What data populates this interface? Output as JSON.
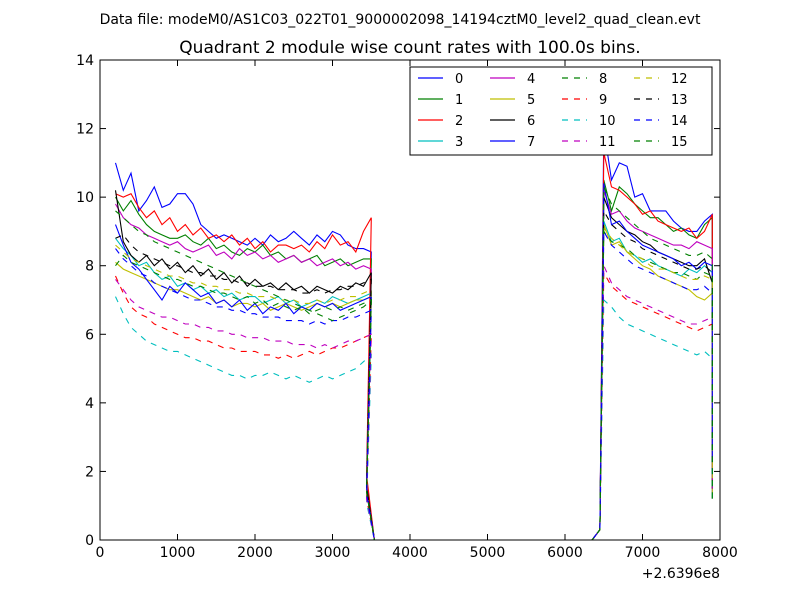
{
  "suptitle": "Data file: modeM0/AS1C03_022T01_9000002098_14194cztM0_level2_quad_clean.evt",
  "chart_data": {
    "type": "line",
    "title": "Quadrant 2 module wise count rates with 100.0s bins.",
    "xlabel": "",
    "ylabel": "",
    "xlim": [
      0,
      8000
    ],
    "ylim": [
      0,
      14
    ],
    "x_offset_label": "+2.6396e8",
    "xticks": [
      0,
      1000,
      2000,
      3000,
      4000,
      5000,
      6000,
      7000,
      8000
    ],
    "yticks": [
      0,
      2,
      4,
      6,
      8,
      10,
      12,
      14
    ],
    "xtick_labels": [
      "0",
      "1000",
      "2000",
      "3000",
      "4000",
      "5000",
      "6000",
      "7000",
      "8000"
    ],
    "ytick_labels": [
      "0",
      "2",
      "4",
      "6",
      "8",
      "10",
      "12",
      "14"
    ],
    "legend_position": "top-right",
    "series": [
      {
        "name": "0",
        "color": "#0000ff",
        "dash": "solid",
        "seg1": [
          11.0,
          10.2,
          10.7,
          9.6,
          9.9,
          10.3,
          9.7,
          9.8,
          10.1,
          10.1,
          9.8,
          9.2,
          9.0,
          8.8,
          8.9,
          8.8,
          8.7,
          8.6,
          8.8,
          8.6,
          8.9,
          8.7,
          8.8,
          9.0,
          8.8,
          8.6,
          8.9,
          8.7,
          9.0,
          8.9,
          8.6,
          8.5,
          8.5,
          8.4
        ],
        "seg2": [
          12.0,
          10.5,
          11.0,
          10.9,
          10.0,
          10.1,
          9.6,
          9.6,
          9.6,
          9.3,
          9.1,
          9.0,
          9.0,
          9.3,
          9.5
        ]
      },
      {
        "name": "1",
        "color": "#008000",
        "dash": "solid",
        "seg1": [
          10.0,
          9.6,
          9.9,
          9.5,
          9.2,
          9.0,
          8.9,
          8.8,
          8.8,
          8.9,
          8.7,
          8.6,
          8.8,
          8.5,
          8.6,
          8.4,
          8.3,
          8.5,
          8.4,
          8.6,
          8.3,
          8.4,
          8.2,
          8.3,
          8.1,
          8.2,
          8.3,
          8.0,
          8.1,
          8.2,
          8.0,
          8.1,
          8.2,
          8.2
        ],
        "seg2": [
          10.5,
          9.6,
          10.3,
          10.1,
          9.8,
          9.6,
          9.4,
          9.4,
          9.2,
          9.0,
          9.1,
          8.9,
          8.8,
          9.2,
          9.4
        ]
      },
      {
        "name": "2",
        "color": "#ff0000",
        "dash": "solid",
        "seg1": [
          10.1,
          10.0,
          10.1,
          9.7,
          9.4,
          9.6,
          9.2,
          9.4,
          9.0,
          9.2,
          8.9,
          9.1,
          8.8,
          8.9,
          8.7,
          8.9,
          8.6,
          8.8,
          8.5,
          8.7,
          8.4,
          8.6,
          8.6,
          8.5,
          8.6,
          8.4,
          8.7,
          8.5,
          8.9,
          8.6,
          8.7,
          8.4,
          9.0,
          9.4
        ],
        "seg2": [
          11.3,
          10.3,
          10.2,
          10.0,
          9.8,
          9.5,
          9.6,
          9.3,
          9.2,
          9.1,
          9.0,
          9.1,
          8.8,
          9.0,
          9.5
        ]
      },
      {
        "name": "3",
        "color": "#00bfbf",
        "dash": "solid",
        "seg1": [
          8.8,
          8.5,
          8.3,
          8.0,
          8.1,
          7.8,
          7.6,
          7.7,
          7.4,
          7.5,
          7.3,
          7.4,
          7.2,
          7.3,
          7.1,
          7.2,
          7.0,
          7.1,
          7.1,
          6.9,
          7.0,
          7.1,
          6.9,
          7.0,
          6.8,
          6.9,
          7.0,
          6.9,
          7.1,
          7.0,
          6.9,
          7.0,
          7.1,
          7.2
        ],
        "seg2": [
          9.3,
          8.7,
          8.8,
          8.4,
          8.3,
          8.1,
          8.2,
          8.0,
          7.9,
          7.8,
          7.7,
          7.9,
          7.8,
          8.0,
          7.8
        ]
      },
      {
        "name": "4",
        "color": "#bf00bf",
        "dash": "solid",
        "seg1": [
          9.8,
          9.4,
          9.2,
          9.1,
          8.9,
          8.8,
          8.7,
          8.6,
          8.7,
          8.5,
          8.4,
          8.5,
          8.6,
          8.3,
          8.4,
          8.2,
          8.5,
          8.3,
          8.4,
          8.2,
          8.3,
          8.1,
          8.2,
          8.3,
          8.1,
          8.2,
          8.0,
          8.1,
          8.2,
          8.0,
          8.1,
          7.9,
          8.0,
          7.9
        ],
        "seg2": [
          10.2,
          9.5,
          9.6,
          9.3,
          9.1,
          9.0,
          8.9,
          8.8,
          8.7,
          8.6,
          8.6,
          8.5,
          8.7,
          8.6,
          8.5
        ]
      },
      {
        "name": "5",
        "color": "#bfbf00",
        "dash": "solid",
        "seg1": [
          8.1,
          7.9,
          7.8,
          7.7,
          7.6,
          7.5,
          7.4,
          7.3,
          7.3,
          7.2,
          7.1,
          7.0,
          7.1,
          6.9,
          7.0,
          6.8,
          6.9,
          6.9,
          6.8,
          6.9,
          6.7,
          6.8,
          6.9,
          6.8,
          6.7,
          6.8,
          6.9,
          6.8,
          6.9,
          6.8,
          6.9,
          7.0,
          7.0,
          7.1
        ],
        "seg2": [
          9.2,
          8.6,
          8.7,
          8.4,
          8.2,
          8.0,
          7.9,
          7.7,
          7.6,
          7.5,
          7.4,
          7.3,
          7.1,
          7.0,
          7.2
        ]
      },
      {
        "name": "6",
        "color": "#000000",
        "dash": "solid",
        "seg1": [
          10.2,
          8.7,
          8.3,
          8.1,
          8.3,
          8.0,
          8.2,
          7.9,
          8.1,
          7.8,
          8.0,
          7.7,
          7.9,
          7.6,
          7.8,
          7.5,
          7.7,
          7.4,
          7.6,
          7.4,
          7.5,
          7.3,
          7.5,
          7.3,
          7.4,
          7.2,
          7.4,
          7.3,
          7.2,
          7.4,
          7.3,
          7.5,
          7.4,
          7.8
        ],
        "seg2": [
          10.0,
          9.4,
          9.2,
          9.0,
          8.9,
          8.7,
          8.6,
          8.4,
          8.3,
          8.2,
          8.1,
          8.0,
          8.0,
          8.2,
          7.5
        ]
      },
      {
        "name": "7",
        "color": "#0000ff",
        "dash": "solid",
        "seg1": [
          9.2,
          8.6,
          8.1,
          7.9,
          7.6,
          7.3,
          7.0,
          7.4,
          7.2,
          7.5,
          7.3,
          7.1,
          7.2,
          6.9,
          7.0,
          6.8,
          7.0,
          6.7,
          6.9,
          6.6,
          6.8,
          6.7,
          6.9,
          6.6,
          6.8,
          6.7,
          6.9,
          6.8,
          6.9,
          6.7,
          6.8,
          6.9,
          7.0,
          7.1
        ],
        "seg2": [
          10.4,
          9.2,
          9.3,
          9.0,
          8.8,
          8.6,
          8.5,
          8.4,
          8.3,
          8.2,
          8.0,
          8.1,
          7.9,
          8.1,
          8.0
        ]
      },
      {
        "name": "8",
        "color": "#008000",
        "dash": "dash",
        "seg1": [
          8.0,
          8.3,
          8.1,
          8.0,
          7.9,
          7.8,
          7.7,
          7.6,
          7.6,
          7.5,
          7.4,
          7.4,
          7.3,
          7.2,
          7.2,
          7.1,
          7.0,
          7.1,
          6.9,
          7.0,
          6.8,
          6.9,
          6.8,
          6.7,
          6.8,
          6.6,
          6.7,
          6.8,
          6.7,
          6.8,
          6.7,
          6.8,
          6.9,
          7.0
        ],
        "seg2": [
          9.0,
          8.7,
          8.6,
          8.5,
          8.3,
          8.2,
          8.1,
          8.0,
          7.9,
          7.8,
          7.8,
          7.7,
          7.6,
          7.8,
          7.7
        ]
      },
      {
        "name": "9",
        "color": "#ff0000",
        "dash": "dash",
        "seg1": [
          7.7,
          7.2,
          6.8,
          6.6,
          6.5,
          6.3,
          6.2,
          6.1,
          6.0,
          5.9,
          5.9,
          5.8,
          5.8,
          5.7,
          5.6,
          5.6,
          5.5,
          5.5,
          5.5,
          5.4,
          5.4,
          5.3,
          5.4,
          5.3,
          5.4,
          5.5,
          5.4,
          5.5,
          5.6,
          5.6,
          5.7,
          5.8,
          5.9,
          6.0
        ],
        "seg2": [
          7.8,
          7.4,
          7.2,
          7.0,
          6.9,
          6.8,
          6.7,
          6.6,
          6.5,
          6.4,
          6.3,
          6.2,
          6.1,
          6.2,
          6.3
        ]
      },
      {
        "name": "10",
        "color": "#00bfbf",
        "dash": "dash",
        "seg1": [
          7.1,
          6.6,
          6.2,
          6.0,
          5.8,
          5.7,
          5.6,
          5.5,
          5.5,
          5.4,
          5.3,
          5.2,
          5.1,
          5.0,
          4.9,
          4.8,
          4.8,
          4.7,
          4.8,
          4.8,
          4.9,
          4.8,
          4.7,
          4.8,
          4.7,
          4.6,
          4.7,
          4.8,
          4.7,
          4.8,
          4.9,
          5.0,
          5.2,
          5.4
        ],
        "seg2": [
          7.0,
          6.8,
          6.5,
          6.3,
          6.2,
          6.1,
          6.0,
          5.9,
          5.8,
          5.7,
          5.6,
          5.5,
          5.4,
          5.5,
          5.3
        ]
      },
      {
        "name": "11",
        "color": "#bf00bf",
        "dash": "dash",
        "seg1": [
          7.6,
          7.3,
          7.0,
          6.8,
          6.7,
          6.6,
          6.5,
          6.5,
          6.4,
          6.3,
          6.3,
          6.2,
          6.2,
          6.1,
          6.1,
          6.0,
          6.0,
          5.9,
          5.9,
          5.9,
          5.8,
          5.8,
          5.8,
          5.7,
          5.7,
          5.7,
          5.6,
          5.7,
          5.6,
          5.7,
          5.8,
          5.8,
          5.9,
          6.0
        ],
        "seg2": [
          8.0,
          7.5,
          7.3,
          7.1,
          7.0,
          6.9,
          6.8,
          6.7,
          6.6,
          6.5,
          6.4,
          6.3,
          6.3,
          6.4,
          6.5
        ]
      },
      {
        "name": "12",
        "color": "#bfbf00",
        "dash": "dash",
        "seg1": [
          8.6,
          8.4,
          8.2,
          8.1,
          8.0,
          7.9,
          7.8,
          7.7,
          7.7,
          7.6,
          7.5,
          7.5,
          7.4,
          7.4,
          7.3,
          7.3,
          7.2,
          7.2,
          7.1,
          7.1,
          7.1,
          7.0,
          7.0,
          7.0,
          6.9,
          6.9,
          7.0,
          6.9,
          7.0,
          7.0,
          7.1,
          7.1,
          7.2,
          7.3
        ],
        "seg2": [
          9.1,
          8.8,
          8.6,
          8.4,
          8.3,
          8.2,
          8.0,
          7.9,
          7.9,
          7.8,
          7.7,
          7.6,
          7.6,
          7.7,
          7.6
        ]
      },
      {
        "name": "13",
        "color": "#000000",
        "dash": "dash",
        "seg1": [
          8.8,
          8.9,
          8.6,
          8.4,
          8.3,
          8.2,
          8.1,
          8.0,
          8.0,
          7.9,
          7.8,
          7.8,
          7.7,
          7.7,
          7.6,
          7.6,
          7.5,
          7.5,
          7.4,
          7.4,
          7.4,
          7.3,
          7.3,
          7.3,
          7.2,
          7.2,
          7.3,
          7.2,
          7.3,
          7.3,
          7.4,
          7.4,
          7.5,
          7.6
        ],
        "seg2": [
          9.6,
          9.2,
          9.0,
          8.8,
          8.7,
          8.5,
          8.4,
          8.3,
          8.2,
          8.1,
          8.0,
          7.9,
          7.9,
          8.0,
          7.8
        ]
      },
      {
        "name": "14",
        "color": "#0000ff",
        "dash": "dash",
        "seg1": [
          8.5,
          8.2,
          8.0,
          7.8,
          7.7,
          7.5,
          7.4,
          7.3,
          7.2,
          7.1,
          7.0,
          7.0,
          6.9,
          6.8,
          6.8,
          6.7,
          6.7,
          6.6,
          6.6,
          6.5,
          6.5,
          6.5,
          6.4,
          6.4,
          6.4,
          6.3,
          6.4,
          6.3,
          6.4,
          6.4,
          6.5,
          6.5,
          6.6,
          6.7
        ],
        "seg2": [
          9.0,
          8.6,
          8.4,
          8.2,
          8.0,
          7.9,
          7.8,
          7.7,
          7.6,
          7.5,
          7.4,
          7.3,
          7.3,
          7.4,
          7.2
        ]
      },
      {
        "name": "15",
        "color": "#008000",
        "dash": "dash",
        "seg1": [
          9.6,
          9.4,
          9.2,
          9.0,
          8.9,
          8.7,
          8.6,
          8.5,
          8.4,
          8.3,
          8.2,
          8.1,
          8.0,
          7.9,
          7.8,
          7.7,
          7.6,
          7.5,
          7.4,
          7.3,
          7.2,
          7.1,
          7.0,
          6.9,
          6.8,
          6.7,
          6.6,
          6.5,
          6.4,
          6.5,
          6.6,
          6.7,
          6.8,
          7.0
        ],
        "seg2": [
          10.3,
          9.8,
          9.6,
          9.4,
          9.2,
          9.0,
          8.8,
          8.7,
          8.6,
          8.5,
          8.4,
          8.3,
          8.3,
          8.4,
          8.2
        ]
      }
    ],
    "x_segment1_start": 200,
    "x_segment2_start": 6500,
    "bin_width": 100,
    "gap_start": 3540,
    "gap_end": 6350
  }
}
